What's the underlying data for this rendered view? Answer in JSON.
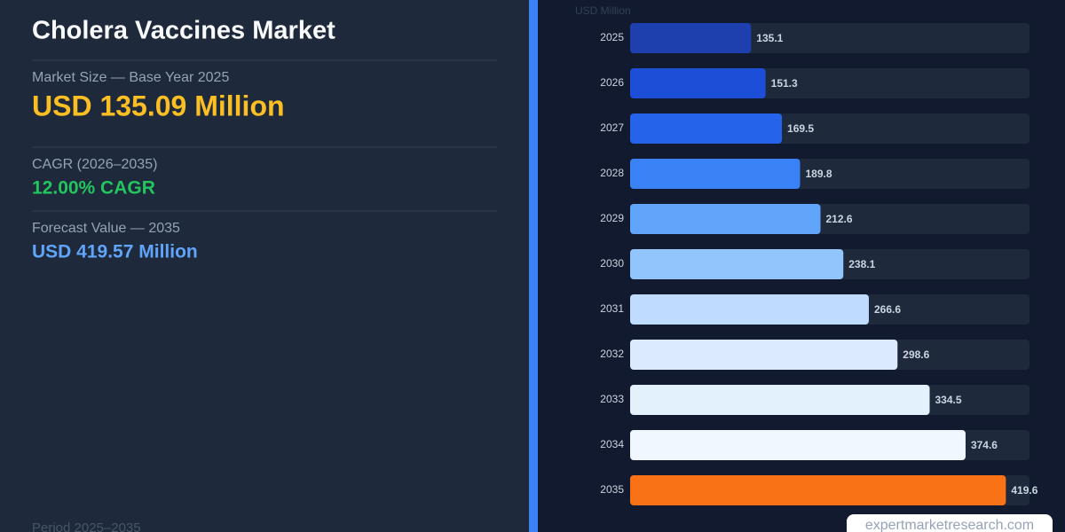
{
  "header": {
    "title": "Cholera Vaccines Market"
  },
  "metrics": [
    {
      "label": "Market Size — Base Year 2025",
      "value": "USD 135.09 Million"
    },
    {
      "label": "CAGR (2026–2035)",
      "value": "12.00% CAGR"
    },
    {
      "label": "Forecast Value — 2035",
      "value": "USD 419.57 Million"
    }
  ],
  "footer": "Period 2025–2035",
  "watermark": "expertmarketresearch.com",
  "chart_data": {
    "type": "bar",
    "orientation": "horizontal",
    "y_label": "USD Million",
    "categories": [
      "2025",
      "2026",
      "2027",
      "2028",
      "2029",
      "2030",
      "2031",
      "2032",
      "2033",
      "2034",
      "2035"
    ],
    "values": [
      135.1,
      151.3,
      169.5,
      189.8,
      212.6,
      238.1,
      266.6,
      298.6,
      334.5,
      374.6,
      419.6
    ],
    "colors": [
      "#1e40af",
      "#1d4ed8",
      "#2563eb",
      "#3b82f6",
      "#60a5fa",
      "#93c5fd",
      "#bfdbfe",
      "#dbeafe",
      "#e3f1fd",
      "#f0f7ff",
      "#f97316"
    ],
    "xlim": [
      0,
      446
    ]
  }
}
